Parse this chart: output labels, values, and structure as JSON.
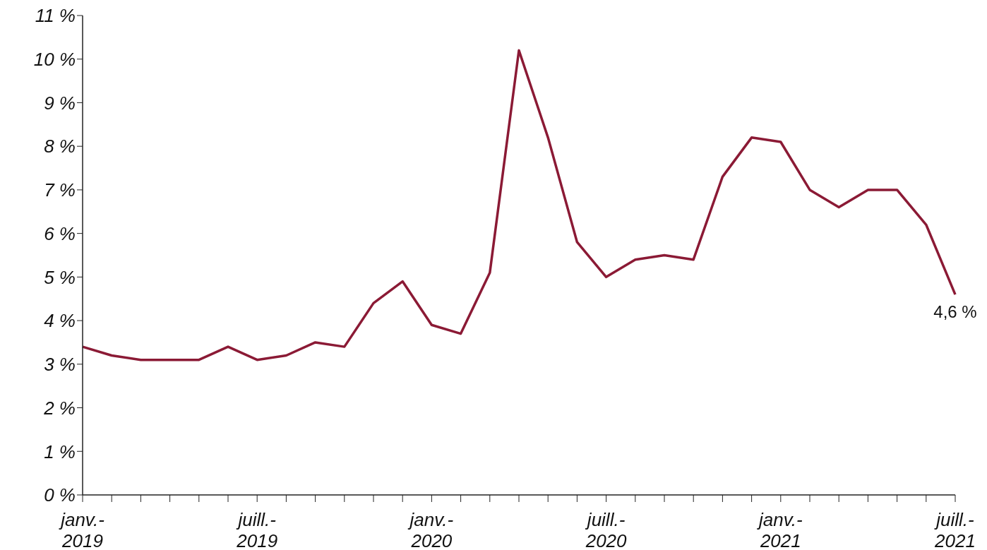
{
  "chart_data": {
    "type": "line",
    "categories": [
      "janv.-2019",
      null,
      null,
      null,
      null,
      null,
      "juill.-2019",
      null,
      null,
      null,
      null,
      null,
      "janv.-2020",
      null,
      null,
      null,
      null,
      null,
      "juill.-2020",
      null,
      null,
      null,
      null,
      null,
      "janv.-2021",
      null,
      null,
      null,
      null,
      null,
      "juill.-2021"
    ],
    "series": [
      {
        "color": "#8b1a35",
        "values": [
          3.4,
          3.2,
          3.1,
          3.1,
          3.1,
          3.4,
          3.1,
          3.2,
          3.5,
          3.4,
          4.4,
          4.9,
          3.9,
          3.7,
          5.1,
          10.2,
          8.2,
          5.8,
          5.0,
          5.4,
          5.5,
          5.4,
          7.3,
          8.2,
          8.1,
          7.0,
          6.6,
          7.0,
          7.0,
          6.2,
          4.6
        ]
      }
    ],
    "ylim": [
      0,
      11
    ],
    "yticks": [
      {
        "value": 0,
        "label": "0 %"
      },
      {
        "value": 1,
        "label": "1 %"
      },
      {
        "value": 2,
        "label": "2 %"
      },
      {
        "value": 3,
        "label": "3 %"
      },
      {
        "value": 4,
        "label": "4 %"
      },
      {
        "value": 5,
        "label": "5 %"
      },
      {
        "value": 6,
        "label": "6 %"
      },
      {
        "value": 7,
        "label": "7 %"
      },
      {
        "value": 8,
        "label": "8 %"
      },
      {
        "value": 9,
        "label": "9 %"
      },
      {
        "value": 10,
        "label": "10 %"
      },
      {
        "value": 11,
        "label": "11 %"
      }
    ],
    "annotations": [
      {
        "text": "4,6 %",
        "x": "juill.-2021",
        "y": 4.6
      }
    ]
  }
}
